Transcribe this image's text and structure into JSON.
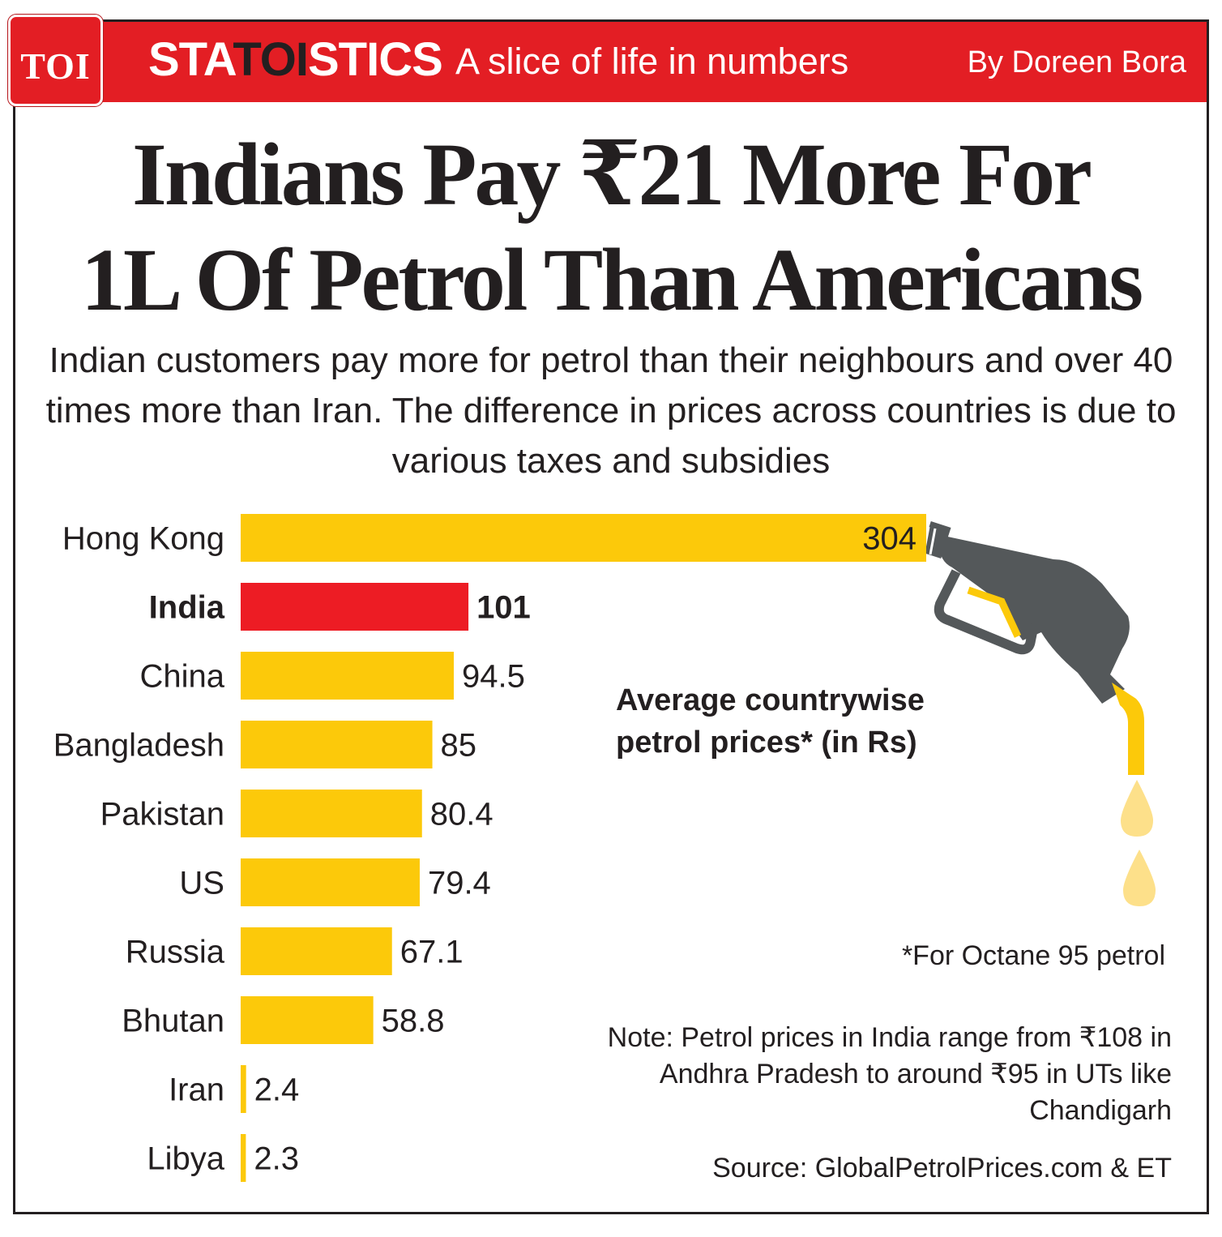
{
  "header": {
    "logo_text": "TOI",
    "brand_prefix": "STA",
    "brand_highlight": "TOI",
    "brand_suffix": "STICS",
    "tagline": "A slice of life in numbers",
    "byline": "By Doreen Bora"
  },
  "headline": {
    "line1": "Indians Pay ₹21 More For",
    "line2": "1L Of Petrol Than Americans"
  },
  "subtitle": "Indian customers pay more for petrol than their neighbours and over 40 times more than Iran. The difference in prices across countries is due to various taxes and subsidies",
  "legend_title_line1": "Average countrywise",
  "legend_title_line2": "petrol prices* (in Rs)",
  "footnote": "*For Octane 95 petrol",
  "note": "Note: Petrol prices in India range from ₹108 in Andhra Pradesh to around ₹95 in UTs like Chandigarh",
  "source": "Source: GlobalPetrolPrices.com & ET",
  "colors": {
    "accent_red": "#e31e24",
    "bar_yellow": "#fcc90a",
    "highlight_red": "#ed1c24",
    "pump_gray": "#54585a",
    "drop_yellow": "#fde08a"
  },
  "icons": [
    "fuel-nozzle-icon",
    "fuel-drop-icon"
  ],
  "chart_data": {
    "type": "bar",
    "orientation": "horizontal",
    "title": "Average countrywise petrol prices* (in Rs)",
    "categories": [
      "Hong Kong",
      "India",
      "China",
      "Bangladesh",
      "Pakistan",
      "US",
      "Russia",
      "Bhutan",
      "Iran",
      "Libya"
    ],
    "values": [
      304,
      101,
      94.5,
      85,
      80.4,
      79.4,
      67.1,
      58.8,
      2.4,
      2.3
    ],
    "value_labels": [
      "304",
      "101",
      "94.5",
      "85",
      "80.4",
      "79.4",
      "67.1",
      "58.8",
      "2.4",
      "2.3"
    ],
    "highlight_category": "India",
    "xlim": [
      0,
      304
    ],
    "xlabel": "",
    "ylabel": "",
    "grid": false
  }
}
